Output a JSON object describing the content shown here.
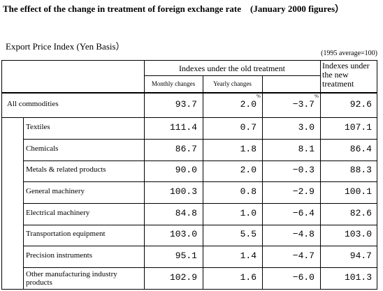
{
  "title": "The effect of the change in treatment of foreign exchange rate　(January 2000 figures）",
  "subtitle": "Export Price Index (Yen Basis）",
  "base_note": "(1995 average=100)",
  "headers": {
    "old_treatment": "Indexes under the old treatment",
    "monthly": "Monthly changes",
    "yearly": "Yearly changes",
    "new_treatment": [
      "Indexes under",
      "the new",
      "treatment"
    ],
    "pct": "%"
  },
  "rows": [
    {
      "label": "All commodities",
      "old": "93.7",
      "monthly": "2.0",
      "yearly": "−3.7",
      "new": "92.6"
    },
    {
      "label": "Textiles",
      "old": "111.4",
      "monthly": "0.7",
      "yearly": "3.0",
      "new": "107.1"
    },
    {
      "label": "Chemicals",
      "old": "86.7",
      "monthly": "1.8",
      "yearly": "8.1",
      "new": "86.4"
    },
    {
      "label": "Metals & related products",
      "old": "90.0",
      "monthly": "2.0",
      "yearly": "−0.3",
      "new": "88.3"
    },
    {
      "label": "General machinery",
      "old": "100.3",
      "monthly": "0.8",
      "yearly": "−2.9",
      "new": "100.1"
    },
    {
      "label": "Electrical machinery",
      "old": "84.8",
      "monthly": "1.0",
      "yearly": "−6.4",
      "new": "82.6"
    },
    {
      "label": "Transportation equipment",
      "old": "103.0",
      "monthly": "5.5",
      "yearly": "−4.8",
      "new": "103.0"
    },
    {
      "label": "Precision instruments",
      "old": "95.1",
      "monthly": "1.4",
      "yearly": "−4.7",
      "new": "94.7"
    },
    {
      "label": "Other manufacturing industry products",
      "label_lines": [
        "Other manufacturing industry",
        "products"
      ],
      "old": "102.9",
      "monthly": "1.6",
      "yearly": "−6.0",
      "new": "101.3"
    }
  ]
}
